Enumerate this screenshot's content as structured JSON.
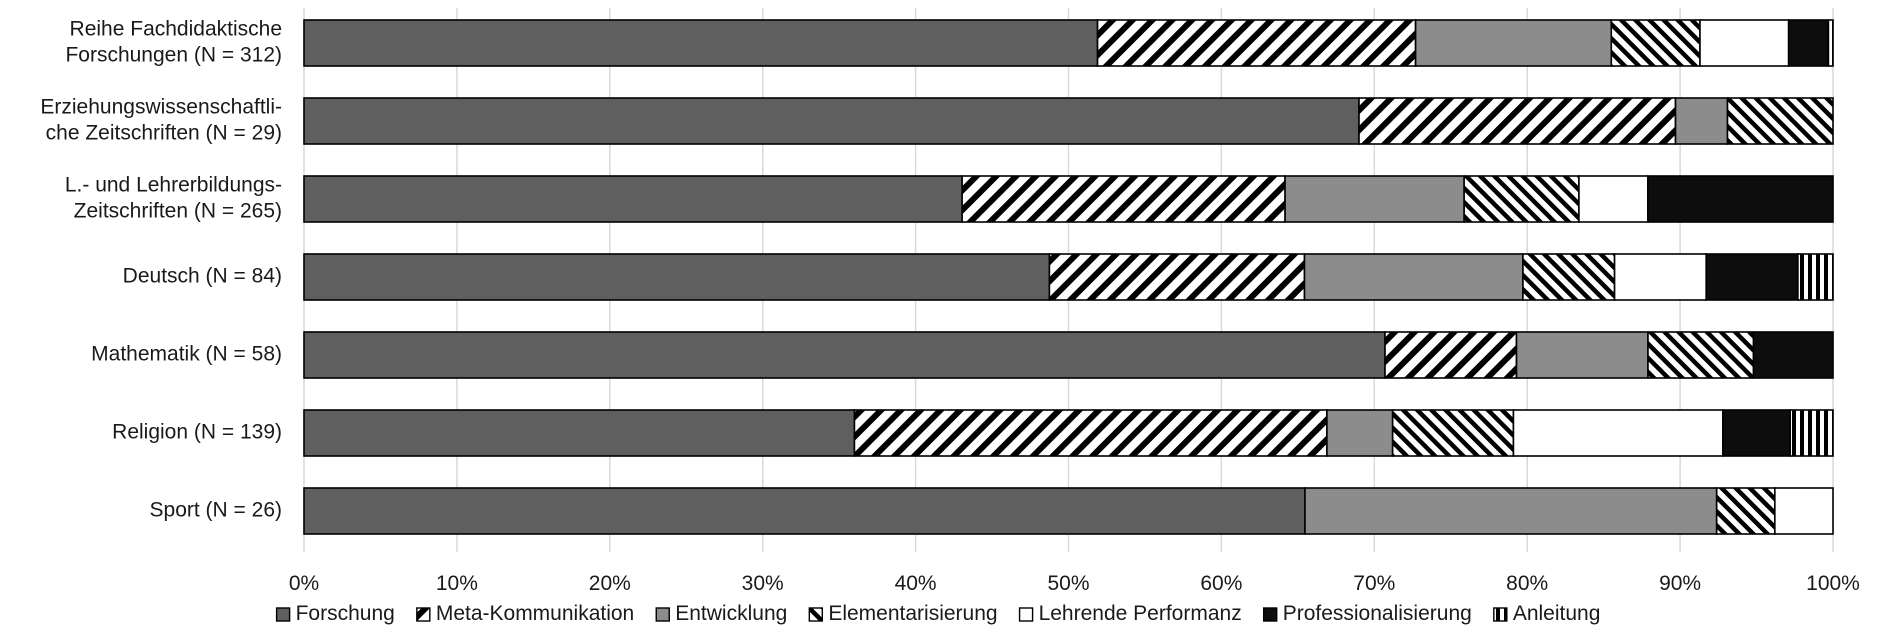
{
  "colors": {
    "Forschung": "#5f5f5f",
    "Entwicklung": "#8c8c8c",
    "Professionalisierung": "#0d0d0d",
    "Lehrende Performanz": "#ffffff",
    "grid": "#d9d9d9",
    "outline": "#000000"
  },
  "chart_data": {
    "type": "bar",
    "orientation": "horizontal",
    "stacked": "percent",
    "categories": [
      [
        "Reihe Fachdidaktische",
        "Forschungen (N = 312)"
      ],
      [
        "Erziehungswissenschaftli-",
        "che Zeitschriften (N = 29)"
      ],
      [
        "L.- und Lehrerbildungs-",
        "Zeitschriften (N = 265)"
      ],
      [
        "Deutsch (N = 84)"
      ],
      [
        "Mathematik (N = 58)"
      ],
      [
        "Religion (N = 139)"
      ],
      [
        "Sport (N = 26)"
      ]
    ],
    "series": [
      {
        "name": "Forschung",
        "pattern": "solid-darkgray",
        "values": [
          51.9,
          69.0,
          43.0,
          48.8,
          70.7,
          36.0,
          65.4
        ]
      },
      {
        "name": "Meta-Kommunikation",
        "pattern": "wide-diagonal-hatch",
        "values": [
          20.8,
          20.7,
          21.1,
          16.7,
          8.6,
          30.9,
          0
        ]
      },
      {
        "name": "Entwicklung",
        "pattern": "solid-lightgray",
        "values": [
          12.8,
          3.4,
          11.7,
          14.3,
          8.6,
          4.3,
          26.9
        ]
      },
      {
        "name": "Elementarisierung",
        "pattern": "dense-diagonal-hatch",
        "values": [
          5.8,
          6.9,
          7.5,
          6.0,
          6.9,
          7.9,
          3.8
        ]
      },
      {
        "name": "Lehrende Performanz",
        "pattern": "white",
        "values": [
          5.8,
          0,
          4.5,
          6.0,
          0,
          13.7,
          3.8
        ]
      },
      {
        "name": "Professionalisierung",
        "pattern": "solid-black",
        "values": [
          2.6,
          0,
          12.1,
          6.0,
          5.2,
          4.4,
          0
        ]
      },
      {
        "name": "Anleitung",
        "pattern": "vertical-stripes",
        "values": [
          0.3,
          0,
          0,
          2.3,
          0,
          2.8,
          0
        ]
      }
    ],
    "x_ticks": [
      "0%",
      "10%",
      "20%",
      "30%",
      "40%",
      "50%",
      "60%",
      "70%",
      "80%",
      "90%",
      "100%"
    ],
    "xlim": [
      0,
      100
    ],
    "grid": "vertical",
    "legend_position": "bottom"
  }
}
